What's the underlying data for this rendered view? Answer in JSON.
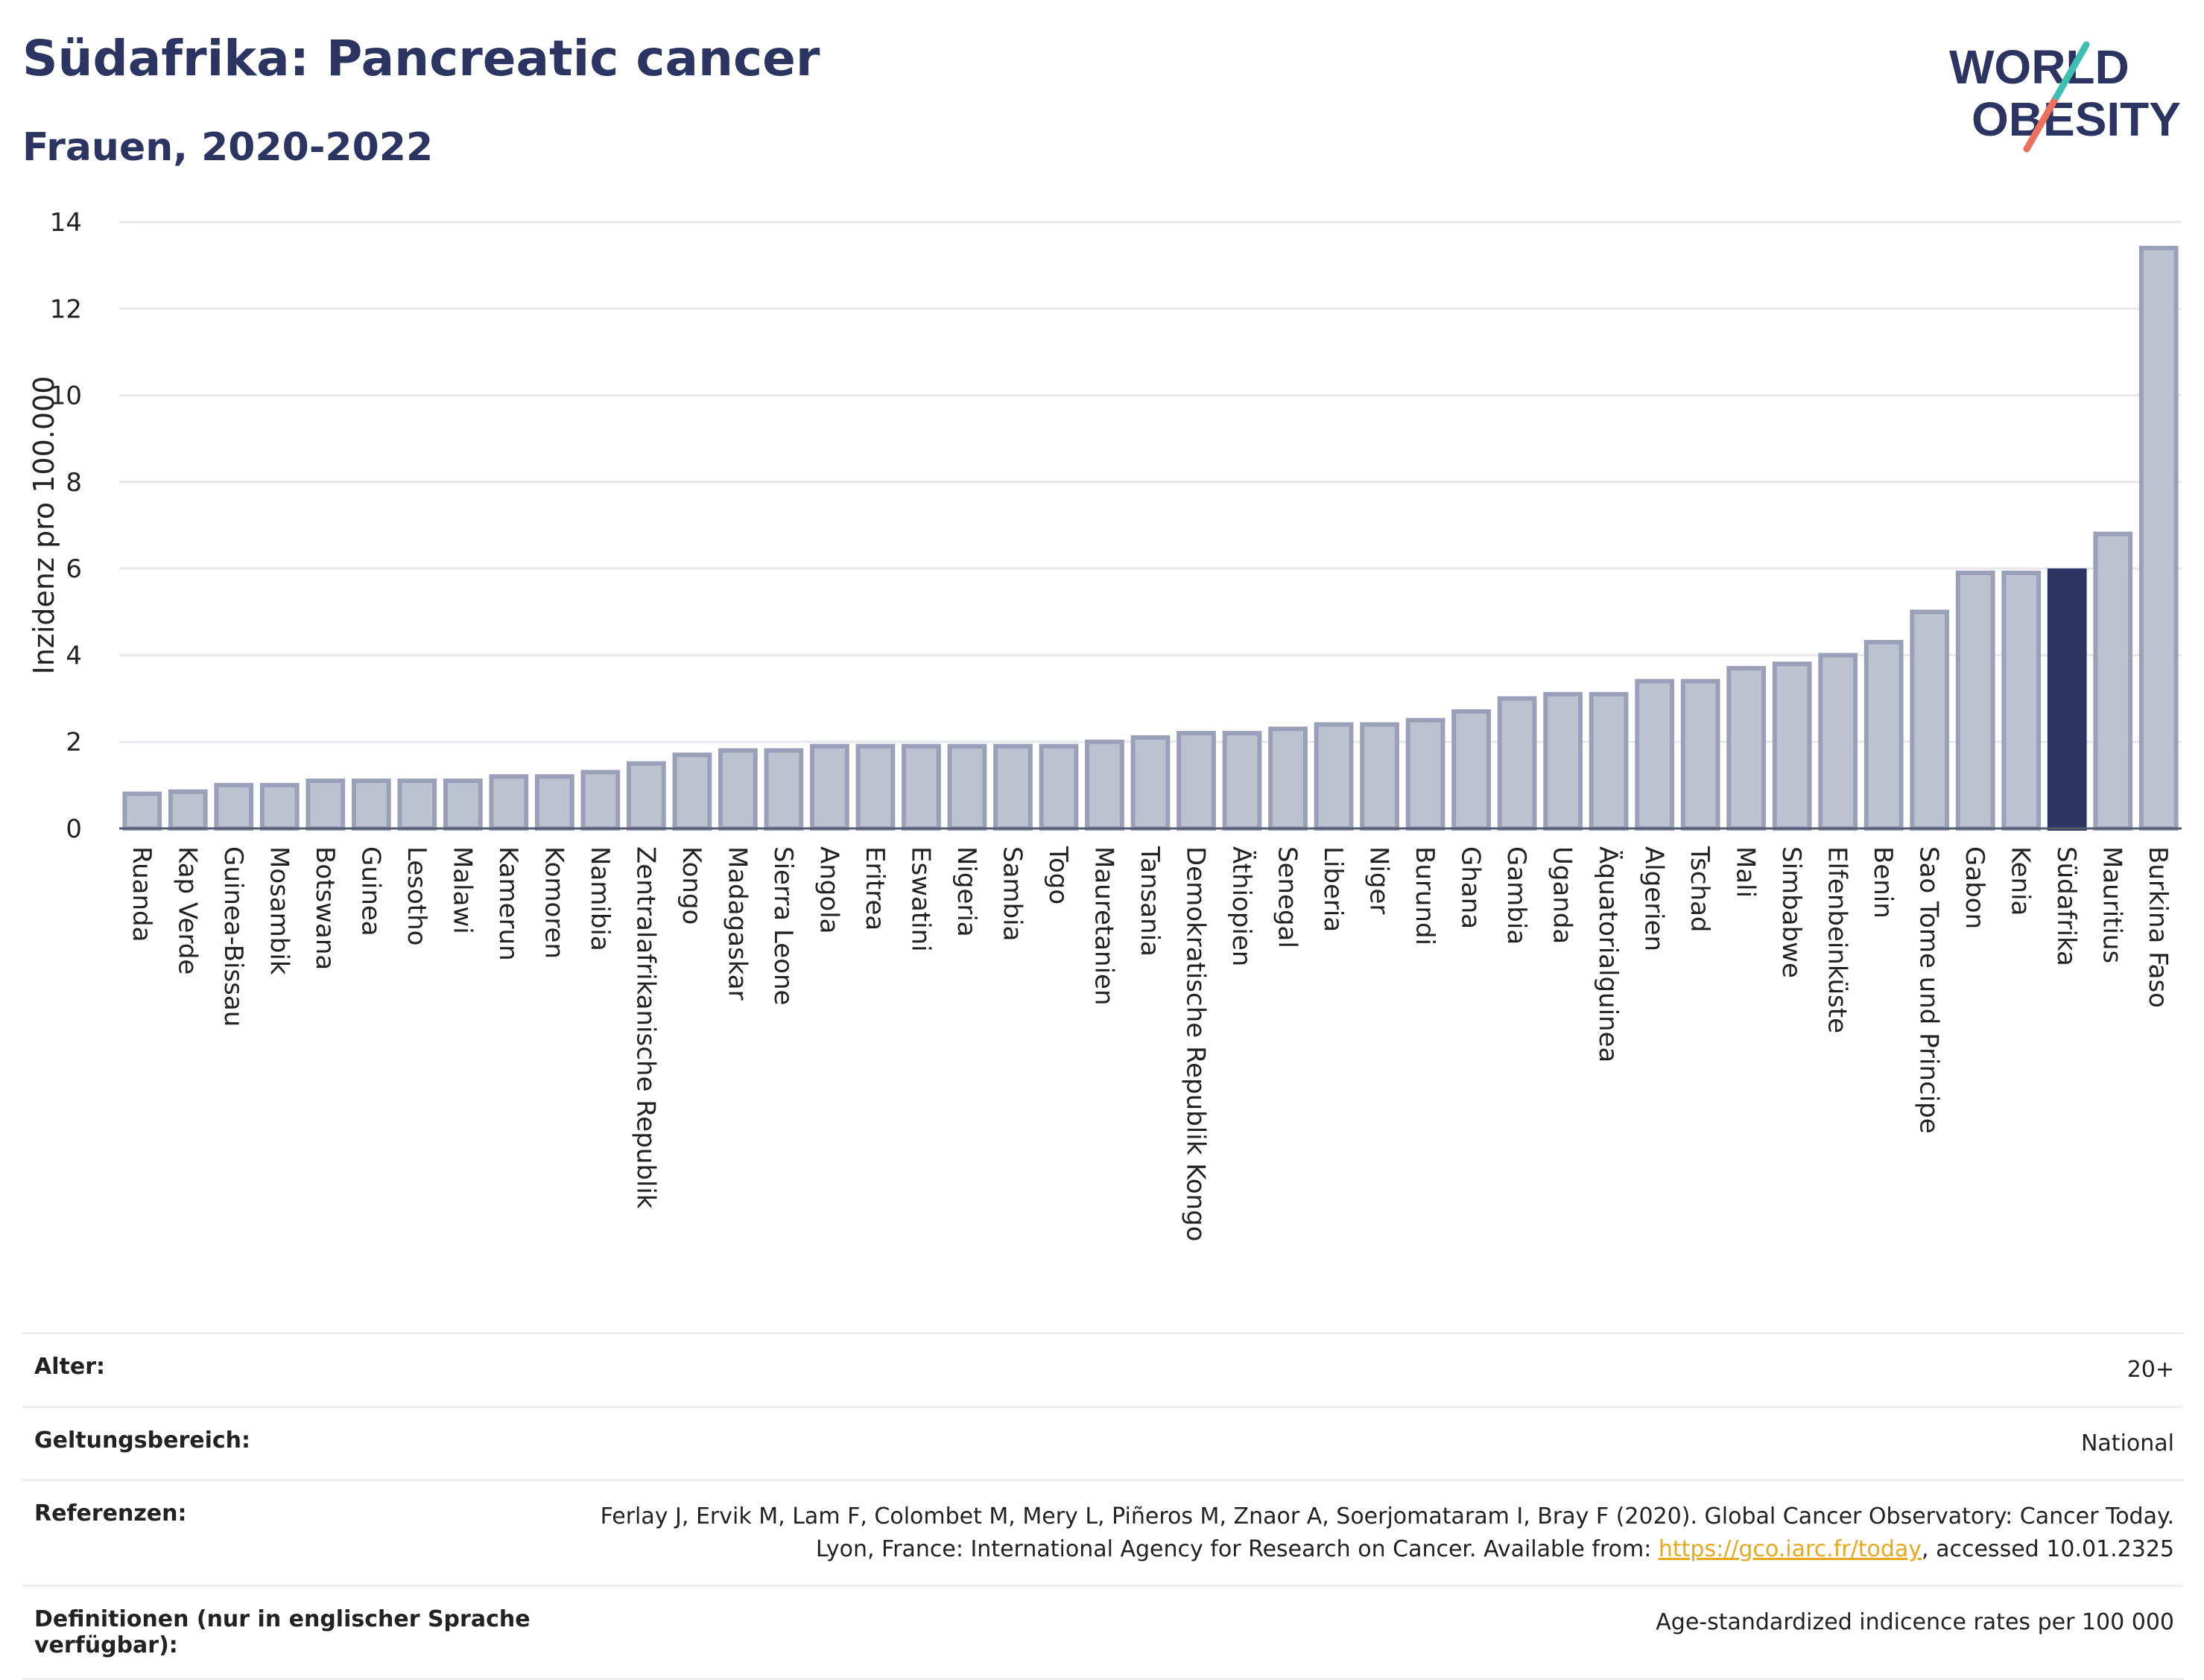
{
  "header": {
    "title": "Südafrika: Pancreatic cancer",
    "subtitle": "Frauen, 2020-2022"
  },
  "logo": {
    "line1": "WORLD",
    "line2": "OBESITY",
    "brand_color": "#2c3562",
    "accent_teal": "#3fbfb2",
    "accent_coral": "#ef6f5e"
  },
  "colors": {
    "bar": "#bdc2d0",
    "bar_stroke": "#9aa0b8",
    "highlight": "#2c3562"
  },
  "chart_data": {
    "type": "bar",
    "ylabel": "Inzidenz pro 100.000",
    "xlabel": "",
    "ylim": [
      0,
      14
    ],
    "yticks": [
      0,
      2,
      4,
      6,
      8,
      10,
      12,
      14
    ],
    "grid": true,
    "highlight": "Südafrika",
    "categories": [
      "Ruanda",
      "Kap Verde",
      "Guinea-Bissau",
      "Mosambik",
      "Botswana",
      "Guinea",
      "Lesotho",
      "Malawi",
      "Kamerun",
      "Komoren",
      "Namibia",
      "Zentralafrikanische Republik",
      "Kongo",
      "Madagaskar",
      "Sierra Leone",
      "Angola",
      "Eritrea",
      "Eswatini",
      "Nigeria",
      "Sambia",
      "Togo",
      "Mauretanien",
      "Tansania",
      "Demokratische Republik Kongo",
      "Äthiopien",
      "Senegal",
      "Liberia",
      "Niger",
      "Burundi",
      "Ghana",
      "Gambia",
      "Uganda",
      "Äquatorialguinea",
      "Algerien",
      "Tschad",
      "Mali",
      "Simbabwe",
      "Elfenbeinküste",
      "Benin",
      "Sao Tome und Principe",
      "Gabon",
      "Kenia",
      "Südafrika",
      "Mauritius",
      "Burkina Faso"
    ],
    "values": [
      0.8,
      0.85,
      1.0,
      1.0,
      1.1,
      1.1,
      1.1,
      1.1,
      1.2,
      1.2,
      1.3,
      1.5,
      1.7,
      1.8,
      1.8,
      1.9,
      1.9,
      1.9,
      1.9,
      1.9,
      1.9,
      2.0,
      2.1,
      2.2,
      2.2,
      2.3,
      2.4,
      2.4,
      2.5,
      2.7,
      3.0,
      3.1,
      3.1,
      3.4,
      3.4,
      3.7,
      3.8,
      4.0,
      4.3,
      5.0,
      5.9,
      5.9,
      5.95,
      6.8,
      13.4
    ]
  },
  "meta": [
    {
      "key": "Alter:",
      "value": "20+"
    },
    {
      "key": "Geltungsbereich:",
      "value": "National"
    },
    {
      "key": "Referenzen:",
      "value_pre": "Ferlay J, Ervik M, Lam F, Colombet M, Mery L, Piñeros M, Znaor A, Soerjomataram I, Bray F (2020). Global Cancer Observatory: Cancer Today. Lyon, France: International Agency for Research on Cancer. Available from: ",
      "link": "https://gco.iarc.fr/today",
      "value_post": ", accessed 10.01.2325"
    },
    {
      "key": "Definitionen (nur in englischer Sprache verfügbar):",
      "value": "Age-standardized indicence rates per 100 000"
    }
  ]
}
